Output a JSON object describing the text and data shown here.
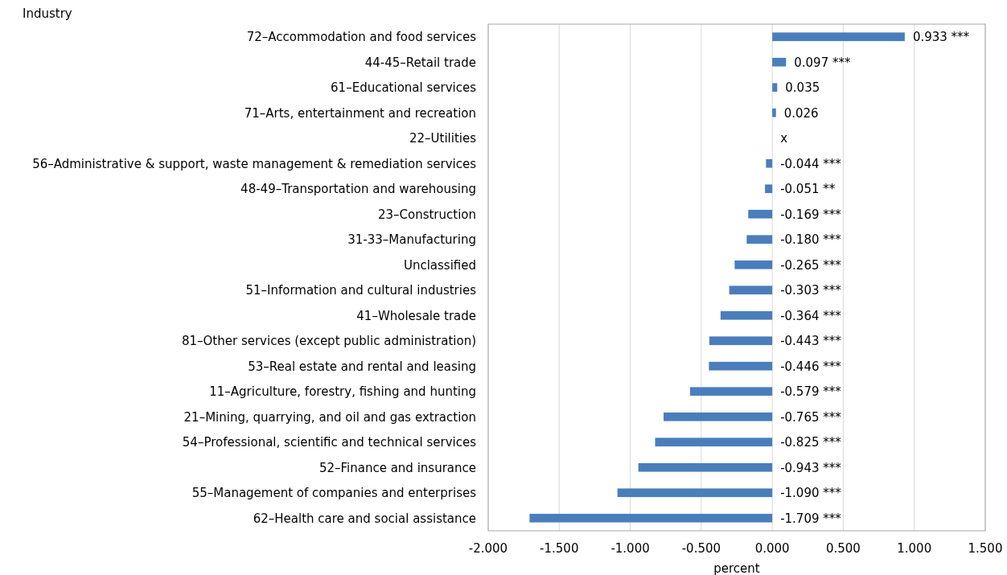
{
  "chart_data": {
    "type": "bar",
    "orientation": "horizontal",
    "ylabel": "Industry",
    "xlabel": "percent",
    "categories": [
      "72–Accommodation and food services",
      "44-45–Retail trade",
      "61–Educational services",
      "71–Arts, entertainment and recreation",
      "22–Utilities",
      "56–Administrative & support, waste management & remediation services",
      "48-49–Transportation and warehousing",
      "23–Construction",
      "31-33–Manufacturing",
      "Unclassified",
      "51–Information and cultural industries",
      "41–Wholesale trade",
      "81–Other services (except public administration)",
      "53–Real estate and rental and leasing",
      "11–Agriculture, forestry, fishing and hunting",
      "21–Mining, quarrying, and oil and gas extraction",
      "54–Professional, scientific and technical services",
      "52–Finance and insurance",
      "55–Management of companies and enterprises",
      "62–Health care and social assistance"
    ],
    "values": [
      0.933,
      0.097,
      0.035,
      0.026,
      null,
      -0.044,
      -0.051,
      -0.169,
      -0.18,
      -0.265,
      -0.303,
      -0.364,
      -0.443,
      -0.446,
      -0.579,
      -0.765,
      -0.825,
      -0.943,
      -1.09,
      -1.709
    ],
    "value_labels": [
      "0.933 ***",
      "0.097 ***",
      "0.035",
      "0.026",
      "x",
      "-0.044 ***",
      "-0.051 **",
      "-0.169 ***",
      "-0.180 ***",
      "-0.265 ***",
      "-0.303 ***",
      "-0.364 ***",
      "-0.443 ***",
      "-0.446 ***",
      "-0.579 ***",
      "-0.765 ***",
      "-0.825 ***",
      "-0.943 ***",
      "-1.090 ***",
      "-1.709 ***"
    ],
    "color": "#4a7ebb",
    "xlim": [
      -2,
      1.5
    ],
    "xticks": [
      {
        "value": -2,
        "label": "-2.000"
      },
      {
        "value": -1.5,
        "label": "-1.500"
      },
      {
        "value": -1,
        "label": "-1.000"
      },
      {
        "value": -0.5,
        "label": "-0.500"
      },
      {
        "value": 0,
        "label": "0.000"
      },
      {
        "value": 0.5,
        "label": "0.500"
      },
      {
        "value": 1,
        "label": "1.000"
      },
      {
        "value": 1.5,
        "label": "1.500"
      }
    ],
    "grid": "x"
  }
}
